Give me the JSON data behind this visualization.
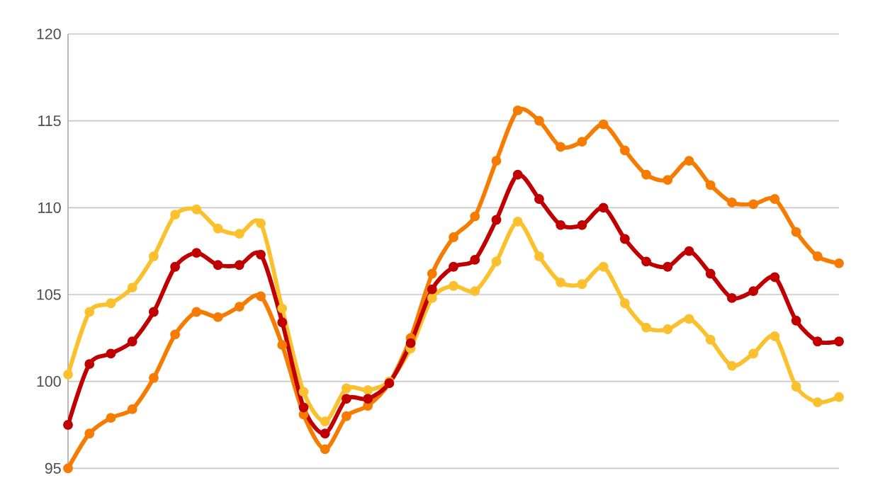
{
  "chart_data": {
    "type": "line",
    "categories": [
      null,
      null,
      null,
      null,
      null,
      null,
      null,
      null,
      null,
      null,
      null,
      null,
      null,
      null,
      null,
      null,
      null,
      null,
      null,
      null,
      null,
      null,
      null,
      null,
      null,
      null,
      null,
      null,
      null,
      null,
      null,
      null,
      null,
      null,
      null,
      null,
      null
    ],
    "series": [
      {
        "color": "#fbc02d",
        "values": [
          100.4,
          104.0,
          104.5,
          105.4,
          107.2,
          109.6,
          109.9,
          108.8,
          108.5,
          109.1,
          104.2,
          99.4,
          97.7,
          99.6,
          99.5,
          100.0,
          101.9,
          104.8,
          105.5,
          105.2,
          106.9,
          109.2,
          107.2,
          105.7,
          105.6,
          106.6,
          104.5,
          103.1,
          103.0,
          103.6,
          102.4,
          100.9,
          101.6,
          102.6,
          99.7,
          98.8,
          99.1
        ]
      },
      {
        "color": "#f57c00",
        "values": [
          95.0,
          97.0,
          97.9,
          98.4,
          100.2,
          102.7,
          104.0,
          103.7,
          104.3,
          104.9,
          102.1,
          98.1,
          96.1,
          98.0,
          98.6,
          99.9,
          102.5,
          106.2,
          108.3,
          109.5,
          112.7,
          115.6,
          115.0,
          113.5,
          113.8,
          114.8,
          113.3,
          111.9,
          111.6,
          112.7,
          111.3,
          110.3,
          110.2,
          110.5,
          108.6,
          107.2,
          106.8
        ]
      },
      {
        "color": "#c00000",
        "values": [
          97.5,
          101.0,
          101.6,
          102.3,
          104.0,
          106.6,
          107.4,
          106.7,
          106.7,
          107.3,
          103.4,
          98.5,
          97.0,
          99.0,
          99.0,
          99.9,
          102.2,
          105.3,
          106.6,
          107.0,
          109.3,
          111.9,
          110.5,
          109.0,
          109.0,
          110.0,
          108.2,
          106.9,
          106.6,
          107.5,
          106.2,
          104.8,
          105.2,
          106.0,
          103.5,
          102.3,
          102.3
        ]
      }
    ],
    "ylim": [
      95,
      120
    ],
    "yticks": [
      95,
      100,
      105,
      110,
      115,
      120
    ],
    "grid": "y",
    "marker": "circle",
    "line_style": "solid",
    "tick_labels": "y"
  }
}
